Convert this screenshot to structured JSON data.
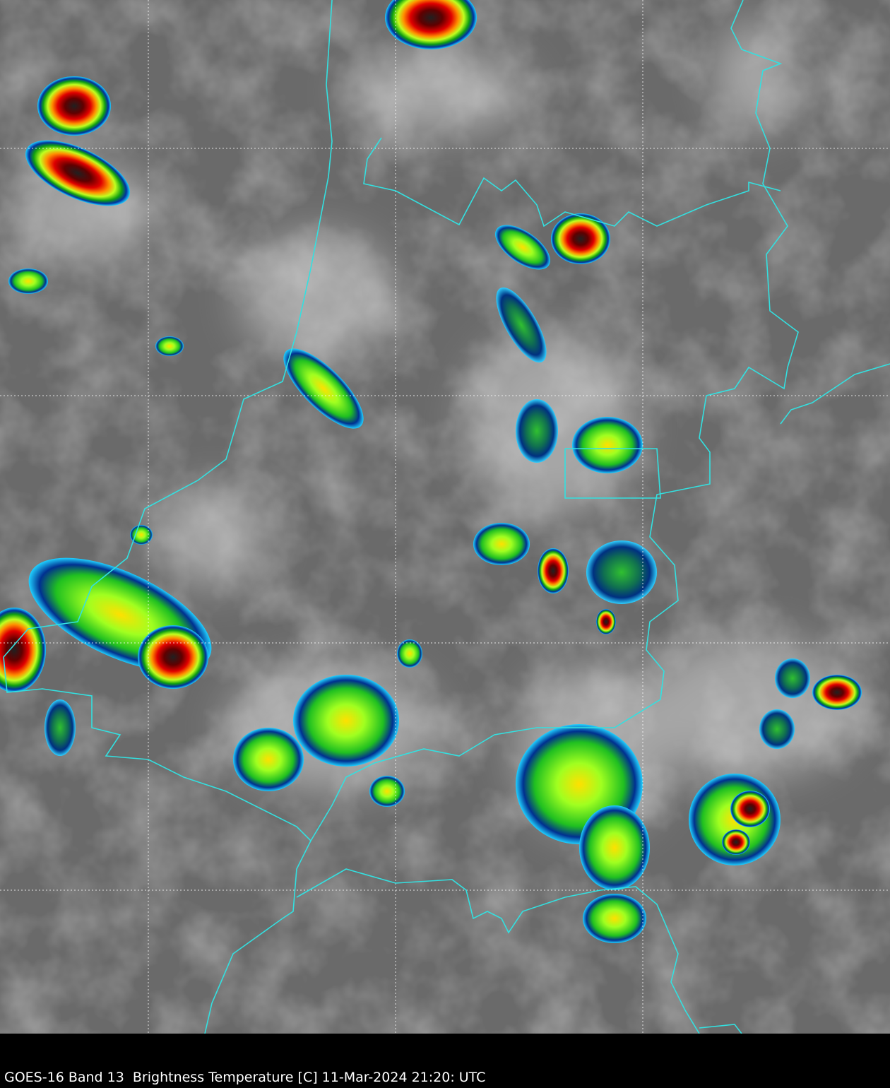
{
  "caption": "GOES-16 Band 13  Brightness Temperature [C] 11-Mar-2024 21:20: UTC",
  "colors": {
    "background_gray": "#6e6e6e",
    "border_line": "#33e0e0",
    "grid_line": "#ffffff",
    "cold_scale": [
      "#ffffff",
      "#00c8ff",
      "#0040a0",
      "#00a000",
      "#40ff40",
      "#ffff00",
      "#ff8000",
      "#d00000",
      "#400000",
      "#808080"
    ]
  }
}
